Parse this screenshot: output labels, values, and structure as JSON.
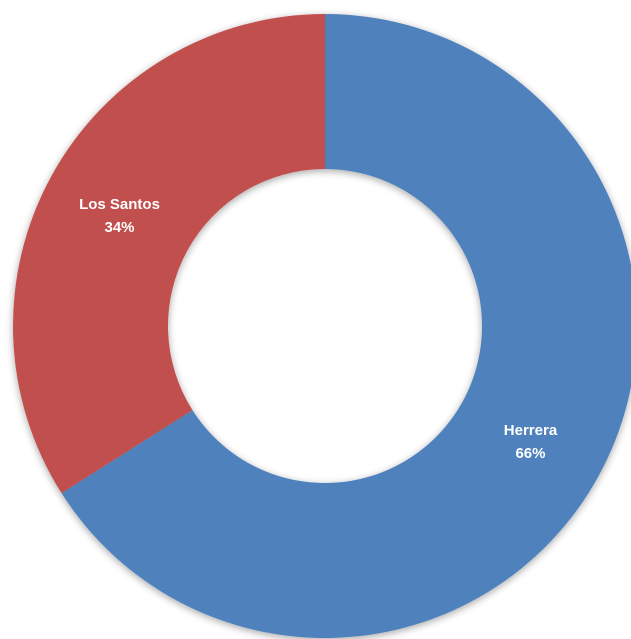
{
  "chart_data": {
    "type": "pie",
    "variant": "doughnut",
    "title": "",
    "categories": [
      "Herrera",
      "Los Santos"
    ],
    "values": [
      66,
      34
    ],
    "value_labels": [
      "66%",
      "34%"
    ],
    "colors": [
      "#4f81bd",
      "#c0504d"
    ],
    "legend": "none",
    "start_angle": "top",
    "direction": "clockwise"
  }
}
